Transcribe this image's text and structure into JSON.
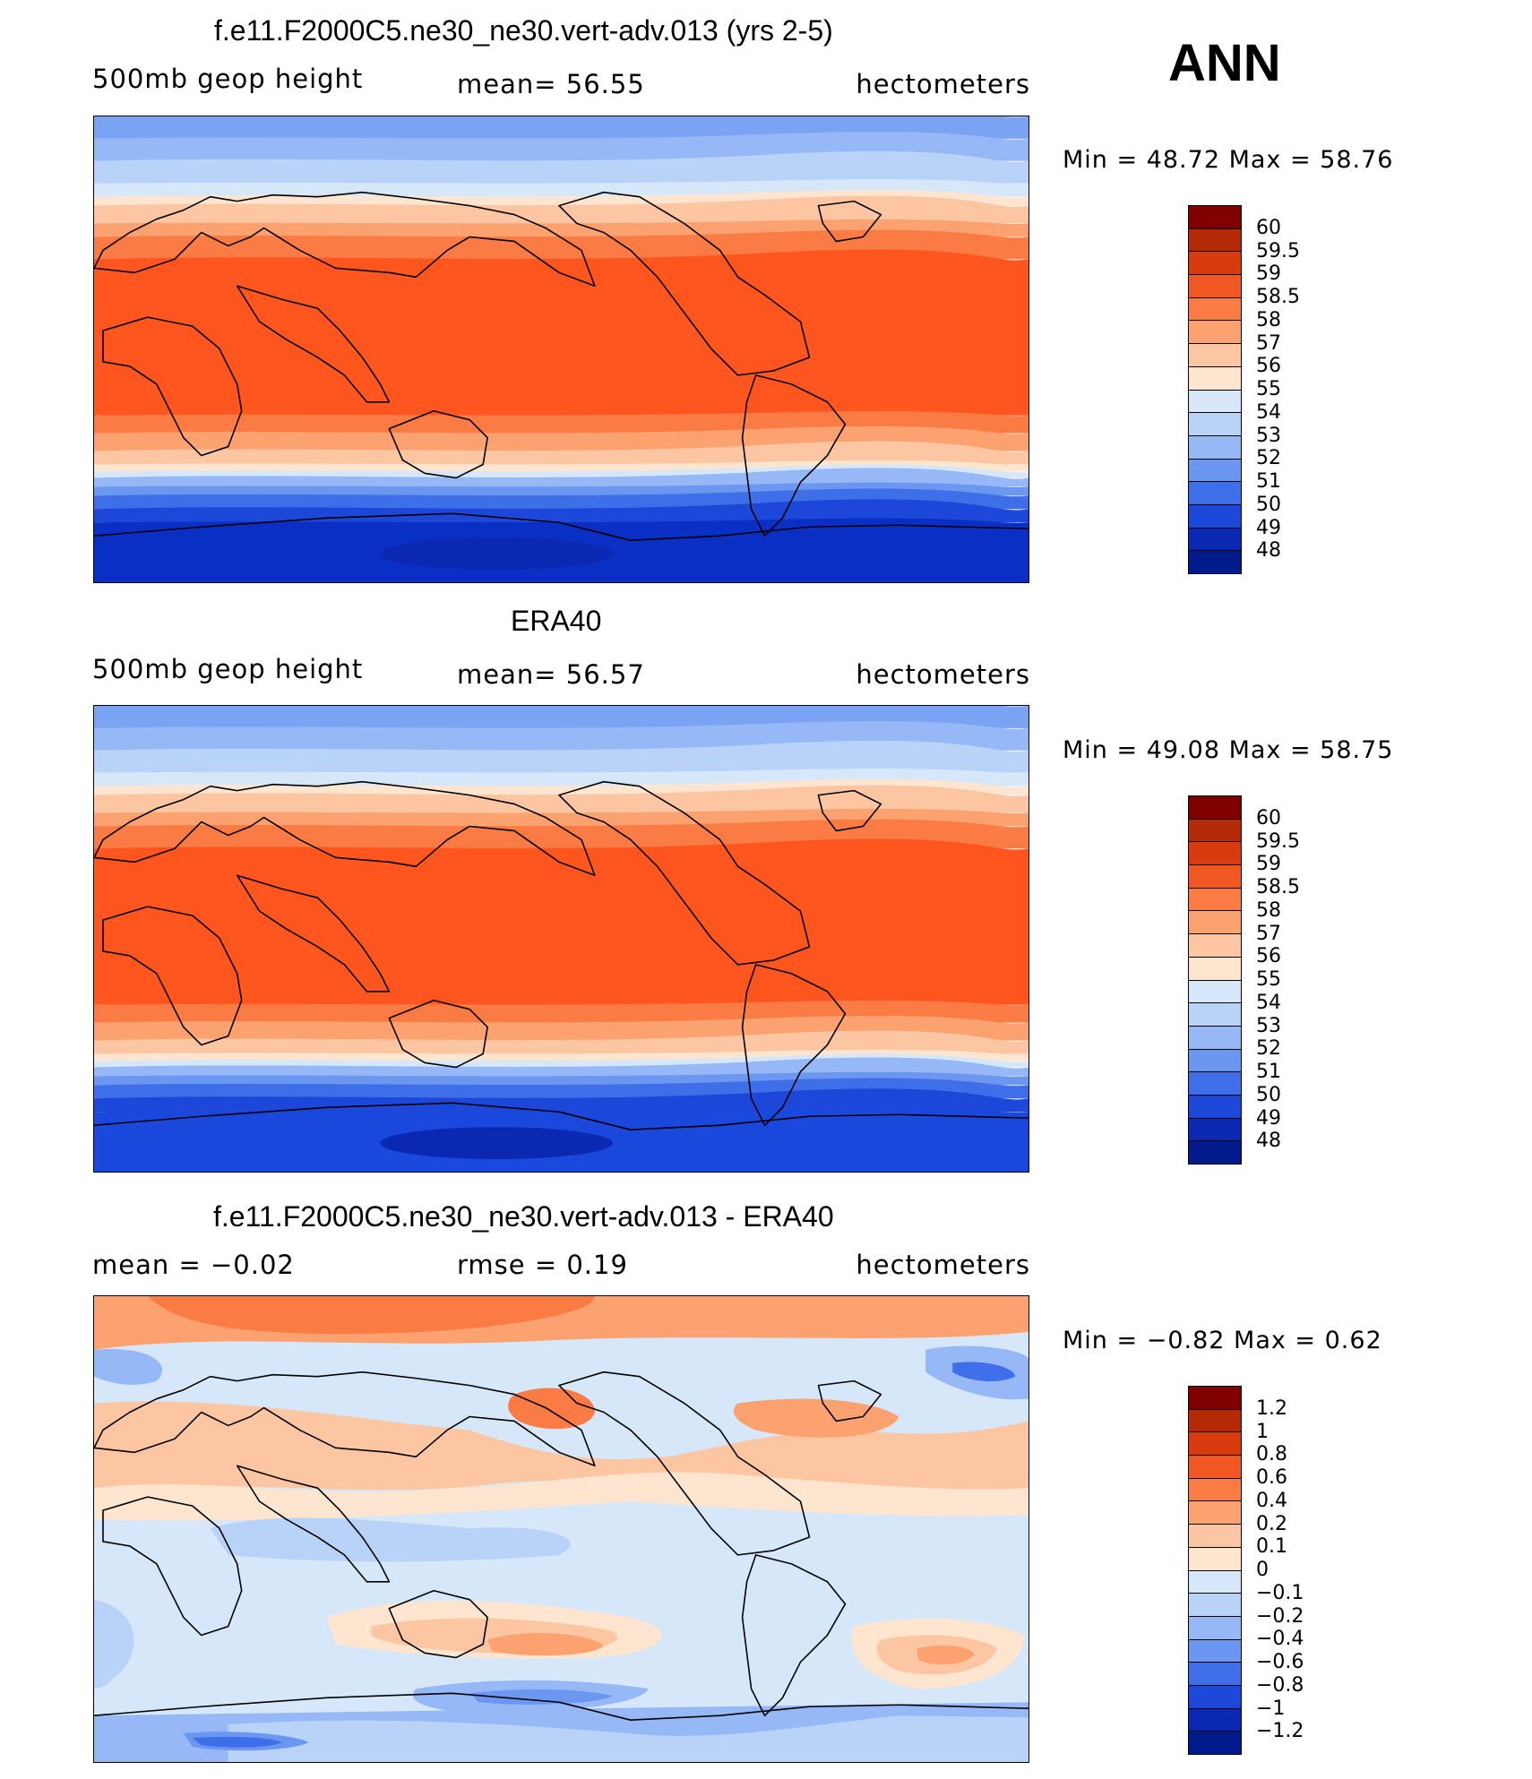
{
  "season": "ANN",
  "panels": [
    {
      "title": "f.e11.F2000C5.ne30_ne30.vert-adv.013 (yrs 2-5)",
      "left": "500mb  geop  height",
      "center": "mean=   56.55",
      "right": "hectometers",
      "minmax": "Min  =    48.72  Max  =    58.76",
      "levels": [
        "60",
        "59.5",
        "59",
        "58.5",
        "58",
        "57",
        "56",
        "55",
        "54",
        "53",
        "52",
        "51",
        "50",
        "49",
        "48"
      ],
      "colors": [
        "#800000",
        "#b52a06",
        "#d93a0e",
        "#f05722",
        "#fa7b43",
        "#fca271",
        "#fdc6a2",
        "#fde5d0",
        "#d6e7fa",
        "#b9d2f8",
        "#96b8f6",
        "#6c97f0",
        "#3e6fe8",
        "#1c47d8",
        "#0b28b2",
        "#011a8c"
      ],
      "map": {
        "type": "z500",
        "trop": "#ff5620",
        "antarctic": "#0a2fc4"
      }
    },
    {
      "title": "ERA40",
      "left": "500mb  geop  height",
      "center": "mean=   56.57",
      "right": "hectometers",
      "minmax": "Min  =    49.08  Max  =    58.75",
      "levels": [
        "60",
        "59.5",
        "59",
        "58.5",
        "58",
        "57",
        "56",
        "55",
        "54",
        "53",
        "52",
        "51",
        "50",
        "49",
        "48"
      ],
      "colors": [
        "#800000",
        "#b52a06",
        "#d93a0e",
        "#f05722",
        "#fa7b43",
        "#fca271",
        "#fdc6a2",
        "#fde5d0",
        "#d6e7fa",
        "#b9d2f8",
        "#96b8f6",
        "#6c97f0",
        "#3e6fe8",
        "#1c47d8",
        "#0b28b2",
        "#011a8c"
      ],
      "map": {
        "type": "z500",
        "trop": "#ff5620",
        "antarctic": "#1a48dc"
      }
    },
    {
      "title": "f.e11.F2000C5.ne30_ne30.vert-adv.013 - ERA40",
      "left": "mean  =   −0.02",
      "center": "rmse  =     0.19",
      "right": "hectometers",
      "minmax": "Min  =   −0.82  Max  =     0.62",
      "levels": [
        "1.2",
        "1",
        "0.8",
        "0.6",
        "0.4",
        "0.2",
        "0.1",
        "0",
        "−0.1",
        "−0.2",
        "−0.4",
        "−0.6",
        "−0.8",
        "−1",
        "−1.2"
      ],
      "colors": [
        "#800000",
        "#b52a06",
        "#d93a0e",
        "#f05722",
        "#fa7b43",
        "#fca271",
        "#fdc6a2",
        "#fde5d0",
        "#d6e7fa",
        "#b9d2f8",
        "#96b8f6",
        "#6c97f0",
        "#3e6fe8",
        "#1c47d8",
        "#0b28b2",
        "#011a8c"
      ],
      "map": {
        "type": "diff"
      }
    }
  ]
}
